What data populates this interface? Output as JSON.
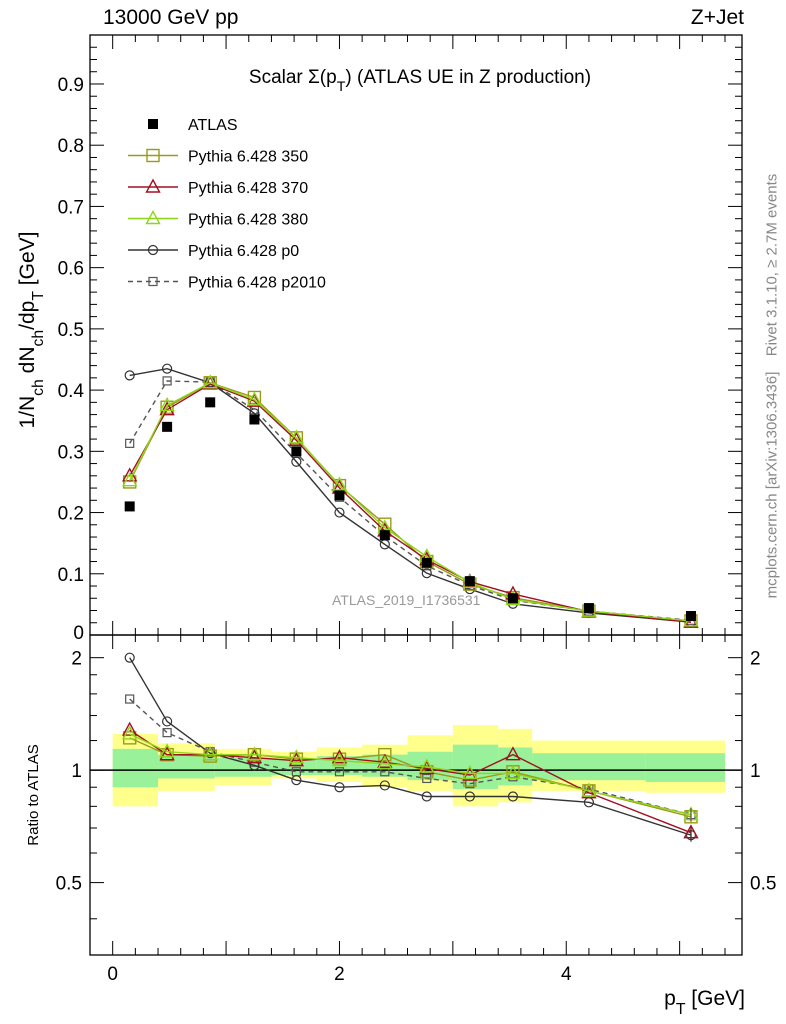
{
  "header": {
    "beam_label": "13000 GeV pp",
    "process_label": "Z+Jet"
  },
  "side_text": {
    "rivet_label": "Rivet 3.1.10, ≥ 2.7M events",
    "source_label": "mcplots.cern.ch [arXiv:1306.3436]"
  },
  "watermark": "ATLAS_2019_I1736531",
  "chart_data": [
    {
      "type": "line",
      "title": "Scalar Σ(p_T) (ATLAS UE in Z production)",
      "ylabel": "1/N_ch dN_ch/dp_T [GeV]",
      "xlabel": "p_T [GeV]",
      "xlim": [
        -0.2,
        5.55
      ],
      "ylim": [
        0,
        0.98
      ],
      "y_ticks": [
        "0.1",
        "0.2",
        "0.3",
        "0.4",
        "0.5",
        "0.6",
        "0.7",
        "0.8",
        "0.9"
      ],
      "legend_position": "top-left",
      "x": [
        0.15,
        0.48,
        0.86,
        1.25,
        1.62,
        2.0,
        2.4,
        2.77,
        3.15,
        3.53,
        4.2,
        5.1
      ],
      "series": [
        {
          "name": "ATLAS",
          "color": "#000000",
          "marker": "filled-square",
          "line": "none",
          "values": [
            0.21,
            0.34,
            0.38,
            0.352,
            0.3,
            0.228,
            0.163,
            0.118,
            0.088,
            0.06,
            0.044,
            0.031
          ]
        },
        {
          "name": "Pythia 6.428 350",
          "color": "#9a9a1a",
          "marker": "open-square",
          "line": "solid",
          "values": [
            0.25,
            0.372,
            0.412,
            0.388,
            0.322,
            0.244,
            0.181,
            0.12,
            0.083,
            0.061,
            0.039,
            0.023
          ]
        },
        {
          "name": "Pythia 6.428 370",
          "color": "#a01020",
          "marker": "open-triangle",
          "line": "solid",
          "values": [
            0.26,
            0.368,
            0.41,
            0.382,
            0.318,
            0.24,
            0.17,
            0.123,
            0.087,
            0.067,
            0.038,
            0.021
          ]
        },
        {
          "name": "Pythia 6.428 380",
          "color": "#8fd61a",
          "marker": "open-triangle",
          "line": "solid",
          "values": [
            0.252,
            0.375,
            0.412,
            0.384,
            0.322,
            0.245,
            0.175,
            0.128,
            0.086,
            0.058,
            0.039,
            0.023
          ]
        },
        {
          "name": "Pythia 6.428 p0",
          "color": "#333333",
          "marker": "open-circle",
          "line": "solid",
          "values": [
            0.424,
            0.435,
            0.412,
            0.362,
            0.283,
            0.2,
            0.148,
            0.101,
            0.075,
            0.051,
            0.036,
            0.021
          ]
        },
        {
          "name": "Pythia 6.428 p2010",
          "color": "#555555",
          "marker": "open-square-small",
          "line": "dashed",
          "values": [
            0.313,
            0.415,
            0.413,
            0.368,
            0.297,
            0.225,
            0.162,
            0.113,
            0.081,
            0.057,
            0.039,
            0.024
          ]
        }
      ]
    },
    {
      "type": "line",
      "ylabel": "Ratio to ATLAS",
      "xlabel": "p_T [GeV]",
      "xlim": [
        -0.2,
        5.55
      ],
      "ylim": [
        0.32,
        2.3
      ],
      "y_ticks": [
        "0.5",
        "1",
        "2"
      ],
      "x_ticks": [
        "0",
        "2",
        "4"
      ],
      "bands": {
        "edges": [
          0.0,
          0.4,
          0.9,
          1.4,
          1.8,
          2.2,
          2.6,
          3.0,
          3.4,
          3.7,
          4.7,
          5.4
        ],
        "yellow_lo": [
          0.8,
          0.88,
          0.91,
          0.95,
          0.93,
          0.9,
          0.88,
          0.8,
          0.82,
          0.88,
          0.87,
          0.88
        ],
        "yellow_hi": [
          1.25,
          1.18,
          1.14,
          1.12,
          1.15,
          1.17,
          1.24,
          1.32,
          1.29,
          1.2,
          1.2,
          1.2
        ],
        "green_lo": [
          0.9,
          0.95,
          0.96,
          0.97,
          0.97,
          0.96,
          0.94,
          0.89,
          0.91,
          0.94,
          0.93,
          0.94
        ],
        "green_hi": [
          1.14,
          1.1,
          1.08,
          1.07,
          1.09,
          1.1,
          1.12,
          1.17,
          1.15,
          1.11,
          1.11,
          1.11
        ]
      },
      "x": [
        0.15,
        0.48,
        0.86,
        1.25,
        1.62,
        2.0,
        2.4,
        2.77,
        3.15,
        3.53,
        4.2,
        5.1
      ],
      "series": [
        {
          "name": "Pythia 6.428 350",
          "color": "#9a9a1a",
          "marker": "open-square",
          "line": "solid",
          "values": [
            1.22,
            1.1,
            1.09,
            1.1,
            1.07,
            1.07,
            1.1,
            0.99,
            0.94,
            0.99,
            0.88,
            0.75
          ]
        },
        {
          "name": "Pythia 6.428 370",
          "color": "#a01020",
          "marker": "open-triangle",
          "line": "solid",
          "values": [
            1.28,
            1.1,
            1.1,
            1.08,
            1.06,
            1.08,
            1.05,
            1.01,
            0.97,
            1.1,
            0.87,
            0.68
          ]
        },
        {
          "name": "Pythia 6.428 380",
          "color": "#8fd61a",
          "marker": "open-triangle",
          "line": "solid",
          "values": [
            1.25,
            1.12,
            1.1,
            1.1,
            1.08,
            1.06,
            1.04,
            1.02,
            0.98,
            0.98,
            0.88,
            0.76
          ]
        },
        {
          "name": "Pythia 6.428 p0",
          "color": "#333333",
          "marker": "open-circle",
          "line": "solid",
          "values": [
            2.0,
            1.35,
            1.11,
            1.03,
            0.94,
            0.9,
            0.91,
            0.85,
            0.85,
            0.85,
            0.82,
            0.67
          ]
        },
        {
          "name": "Pythia 6.428 p2010",
          "color": "#555555",
          "marker": "open-square-small",
          "line": "dashed",
          "values": [
            1.55,
            1.26,
            1.12,
            1.05,
            0.99,
            0.99,
            0.99,
            0.95,
            0.92,
            0.96,
            0.89,
            0.76
          ]
        }
      ]
    }
  ]
}
